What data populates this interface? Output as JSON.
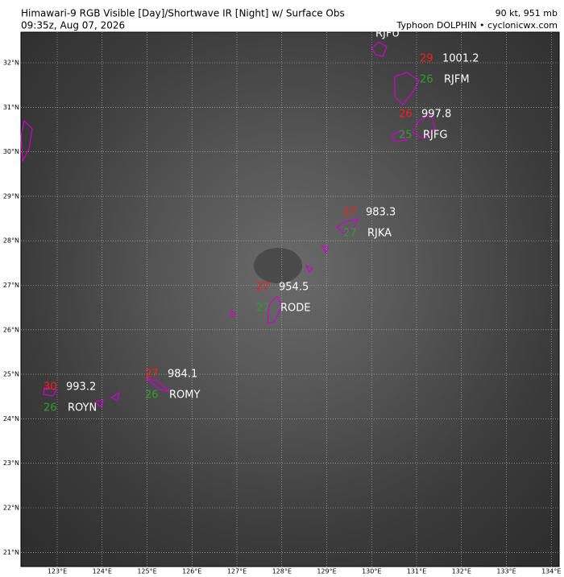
{
  "header": {
    "title": "Himawari-9 RGB Visible [Day]/Shortwave IR [Night] w/ Surface Obs",
    "time": "09:35z, Aug 07, 2026",
    "intensity": "90 kt, 951 mb",
    "storm": "Typhoon DOLPHIN • cyclonicwx.com"
  },
  "map": {
    "lon_labels": [
      "123°E",
      "124°E",
      "125°E",
      "126°E",
      "127°E",
      "128°E",
      "129°E",
      "130°E",
      "131°E",
      "132°E",
      "133°E",
      "134°E"
    ],
    "lat_labels": [
      "32°N",
      "31°N",
      "30°N",
      "29°N",
      "28°N",
      "27°N",
      "26°N",
      "25°N",
      "24°N",
      "23°N",
      "22°N",
      "21°N"
    ],
    "stations": [
      {
        "id": "RJFU"
      },
      {
        "id": "RJFM",
        "temp": 29,
        "dew": 26,
        "pressure": 1001.2
      },
      {
        "id": "RJFG",
        "temp": 26,
        "dew": 25,
        "pressure": 997.8
      },
      {
        "id": "RJKA",
        "temp": 27,
        "dew": 27,
        "pressure": 983.3
      },
      {
        "id": "RODE",
        "temp": 27,
        "dew": 27,
        "pressure": 954.5
      },
      {
        "id": "ROMY",
        "temp": 27,
        "dew": 26,
        "pressure": 984.1
      },
      {
        "id": "ROYN",
        "temp": 30,
        "dew": 26,
        "pressure": 993.2
      }
    ]
  }
}
